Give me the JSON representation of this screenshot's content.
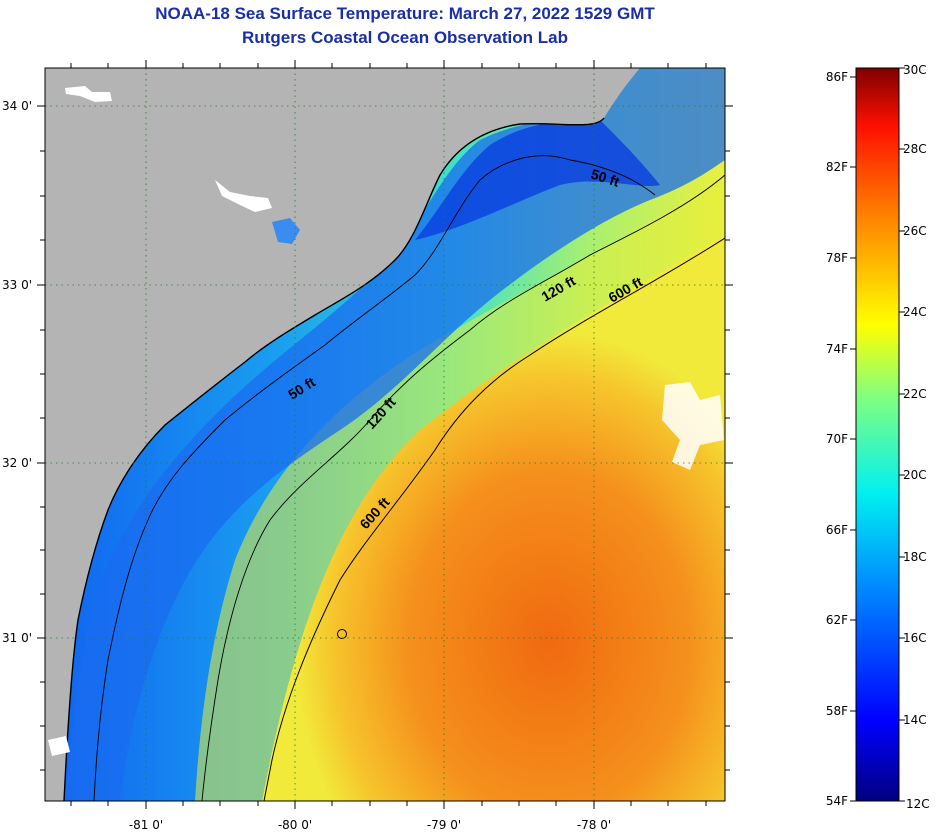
{
  "title": {
    "line1": "NOAA-18 Sea Surface Temperature:  March 27, 2022 1529 GMT",
    "line2": "Rutgers Coastal Ocean Observation Lab"
  },
  "map": {
    "lat_ticks": [
      {
        "label": "34 0'",
        "lat": 34.0
      },
      {
        "label": "33 0'",
        "lat": 33.0
      },
      {
        "label": "32 0'",
        "lat": 32.0
      },
      {
        "label": "31 0'",
        "lat": 31.0
      }
    ],
    "lon_ticks": [
      {
        "label": "-81 0'",
        "lon": -81.0
      },
      {
        "label": "-80 0'",
        "lon": -80.0
      },
      {
        "label": "-79 0'",
        "lon": -79.0
      },
      {
        "label": "-78 0'",
        "lon": -78.0
      }
    ],
    "contour_labels": [
      {
        "text": "50 ft",
        "depth_ft": 50
      },
      {
        "text": "120 ft",
        "depth_ft": 120
      },
      {
        "text": "600 ft",
        "depth_ft": 600
      },
      {
        "text": "50 ft",
        "depth_ft": 50
      },
      {
        "text": "120 ft",
        "depth_ft": 120
      },
      {
        "text": "600 ft",
        "depth_ft": 600
      }
    ],
    "colors": {
      "land": "#b4b4b4",
      "cloud": "#ffffff",
      "cold_water": "#1a5cf0",
      "warm_water": "#f07a10"
    }
  },
  "colorbar": {
    "fahrenheit": [
      "86F",
      "82F",
      "78F",
      "74F",
      "70F",
      "66F",
      "62F",
      "58F",
      "54F"
    ],
    "celsius": [
      "30C",
      "28C",
      "26C",
      "24C",
      "22C",
      "20C",
      "18C",
      "16C",
      "14C",
      "12C"
    ],
    "range_c": [
      12,
      30
    ],
    "palette": [
      "#00007f",
      "#0000ff",
      "#0080ff",
      "#00ffff",
      "#80ff80",
      "#ffff00",
      "#ff8000",
      "#ff0000",
      "#7f0000"
    ]
  }
}
